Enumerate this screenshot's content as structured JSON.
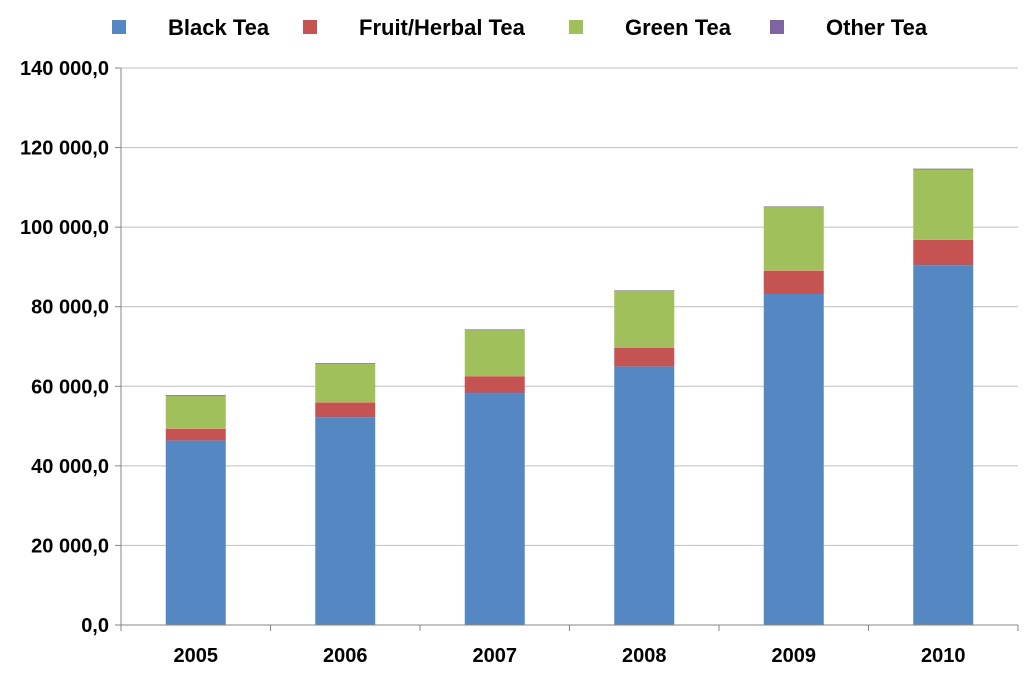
{
  "chart_data": {
    "type": "bar",
    "stacked": true,
    "title": "",
    "xlabel": "",
    "ylabel": "",
    "categories": [
      "2005",
      "2006",
      "2007",
      "2008",
      "2009",
      "2010"
    ],
    "series": [
      {
        "name": "Black Tea",
        "color": "#5588c3",
        "values": [
          46300,
          52200,
          58300,
          64900,
          83200,
          90400
        ]
      },
      {
        "name": "Fruit/Herbal Tea",
        "color": "#c55352",
        "values": [
          3000,
          3700,
          4200,
          4800,
          5800,
          6400
        ]
      },
      {
        "name": "Green Tea",
        "color": "#a0c05c",
        "values": [
          8300,
          9700,
          11600,
          14200,
          16000,
          17700
        ]
      },
      {
        "name": "Other Tea",
        "color": "#8064a2",
        "values": [
          200,
          200,
          200,
          200,
          200,
          200
        ]
      }
    ],
    "ylim": [
      0,
      140000
    ],
    "yticks": [
      0,
      20000,
      40000,
      60000,
      80000,
      100000,
      120000,
      140000
    ],
    "ytick_labels": [
      "0,0",
      "20 000,0",
      "40 000,0",
      "60 000,0",
      "80 000,0",
      "100 000,0",
      "120 000,0",
      "140 000,0"
    ],
    "grid": true,
    "legend_position": "top"
  }
}
